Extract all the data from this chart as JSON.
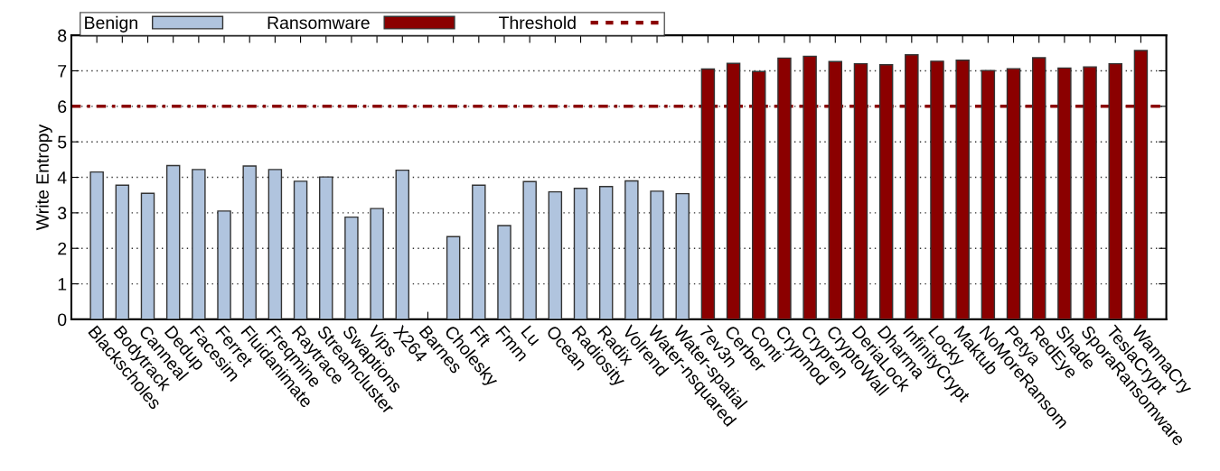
{
  "chart_data": {
    "type": "bar",
    "ylabel": "Write Entropy",
    "categories": [
      "Blackscholes",
      "Bodytrack",
      "Canneal",
      "Dedup",
      "Facesim",
      "Ferret",
      "Fluidanimate",
      "Freqmine",
      "Raytrace",
      "Streamcluster",
      "Swaptions",
      "Vips",
      "X264",
      "Barnes",
      "Cholesky",
      "Fft",
      "Fmm",
      "Lu",
      "Ocean",
      "Radiosity",
      "Radix",
      "Volrend",
      "Water-nsquared",
      "Water-spatial",
      "7ev3n",
      "Cerber",
      "Conti",
      "Crypmod",
      "Crypren",
      "CryptoWall",
      "DeriaLock",
      "Dharma",
      "InfinityCrypt",
      "Locky",
      "Maktub",
      "NoMoreRansom",
      "Petya",
      "RedEye",
      "Shade",
      "SporaRansomware",
      "TeslaCrypt",
      "WannaCry"
    ],
    "series": [
      {
        "name": "Benign",
        "color": "#b0c4de",
        "values": [
          4.15,
          3.78,
          3.55,
          4.33,
          4.22,
          3.05,
          4.32,
          4.22,
          3.89,
          4.01,
          2.88,
          3.12,
          4.2,
          null,
          2.33,
          3.78,
          2.64,
          3.88,
          3.59,
          3.69,
          3.74,
          3.9,
          3.61,
          3.54,
          null,
          null,
          null,
          null,
          null,
          null,
          null,
          null,
          null,
          null,
          null,
          null,
          null,
          null,
          null,
          null,
          null,
          null
        ]
      },
      {
        "name": "Ransomware",
        "color": "#8b0000",
        "values": [
          null,
          null,
          null,
          null,
          null,
          null,
          null,
          null,
          null,
          null,
          null,
          null,
          null,
          null,
          null,
          null,
          null,
          null,
          null,
          null,
          null,
          null,
          null,
          null,
          7.05,
          7.21,
          6.98,
          7.36,
          7.41,
          7.26,
          7.2,
          7.17,
          7.45,
          7.27,
          7.3,
          7.01,
          7.06,
          7.37,
          7.08,
          7.11,
          7.2,
          7.57
        ]
      }
    ],
    "ref_lines": [
      {
        "axis": "y",
        "value": 6,
        "label": "Threshold",
        "color": "#8b0000",
        "line_style": "dashed"
      }
    ],
    "ylim": [
      0,
      8
    ],
    "yticks": [
      0,
      1,
      2,
      3,
      4,
      5,
      6,
      7,
      8
    ],
    "grid": "y",
    "legend": "top left"
  }
}
